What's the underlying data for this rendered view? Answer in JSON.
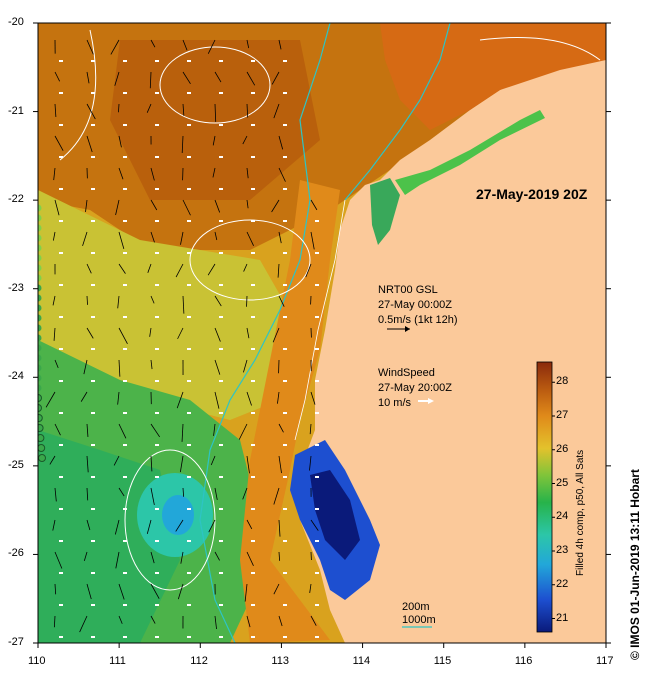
{
  "title": "27-May-2019 20Z",
  "credit": "© IMOS 01-Jun-2019 13:11 Hobart",
  "current_legend": {
    "name": "NRT00 GSL",
    "time": "27-May 00:00Z",
    "scale": "0.5m/s (1kt 12h)"
  },
  "wind_legend": {
    "name": "WindSpeed",
    "time": "27-May 20:00Z",
    "scale": "10 m/s"
  },
  "colorbar": {
    "title": "Filled 4h comp, p50, All Sats",
    "ticks": [
      "21",
      "22",
      "23",
      "24",
      "25",
      "26",
      "27",
      "28"
    ],
    "range": [
      20.6,
      28.6
    ],
    "colors": [
      "#0a1a7a",
      "#1d4fd0",
      "#22a7d9",
      "#2cc6a8",
      "#27b34a",
      "#7fc43a",
      "#e3c22c",
      "#e08a1a",
      "#b95a10",
      "#8a2a0c"
    ]
  },
  "contours": {
    "label_200": "200m",
    "label_1000": "1000m",
    "line_1000_color": "#2ec4c4"
  },
  "axes": {
    "x_ticks": [
      "110",
      "111",
      "112",
      "113",
      "114",
      "115",
      "116",
      "117"
    ],
    "y_ticks": [
      "-20",
      "-21",
      "-22",
      "-23",
      "-24",
      "-25",
      "-26",
      "-27"
    ],
    "x_range": [
      110,
      117
    ],
    "y_range": [
      -27,
      -20
    ]
  },
  "colors": {
    "land": "#fbc99a",
    "shelf_contour": "#ffffff"
  }
}
